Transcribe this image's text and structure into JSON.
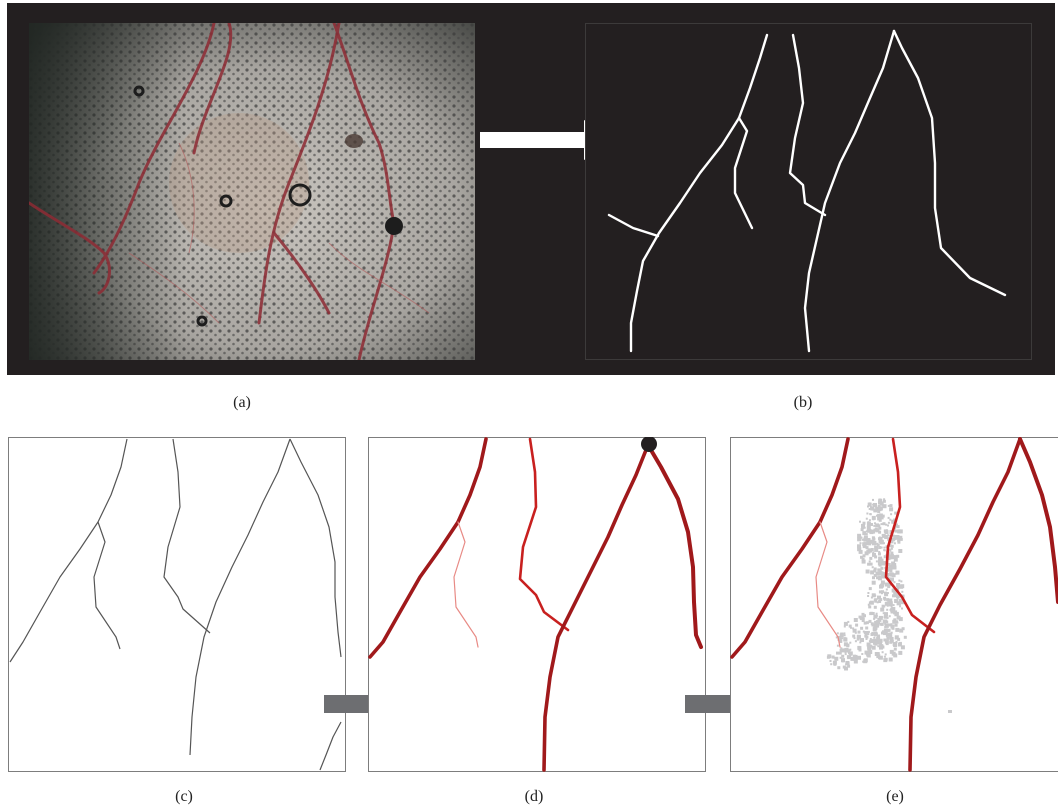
{
  "captions": {
    "a": "(a)",
    "b": "(b)",
    "c": "(c)",
    "d": "(d)",
    "e": "(e)"
  },
  "colors": {
    "top_background": "#231f20",
    "skeleton_line": "#ffffff",
    "vessel_dark_red": "#a0191b",
    "vessel_mid_red": "#c8201f",
    "vessel_light_red": "#e88a85",
    "thin_line": "#555555",
    "arrow_gray": "#6d6e71",
    "noise_gray": "#c9c9cb",
    "start_point": "#231f20"
  },
  "panels": [
    {
      "id": "a",
      "kind": "photograph-with-vessels"
    },
    {
      "id": "b",
      "kind": "white-skeleton-on-black"
    },
    {
      "id": "c",
      "kind": "thin-skeleton-on-white"
    },
    {
      "id": "d",
      "kind": "traced-vessels-with-start-point"
    },
    {
      "id": "e",
      "kind": "traced-vessels-with-noise-region"
    }
  ]
}
